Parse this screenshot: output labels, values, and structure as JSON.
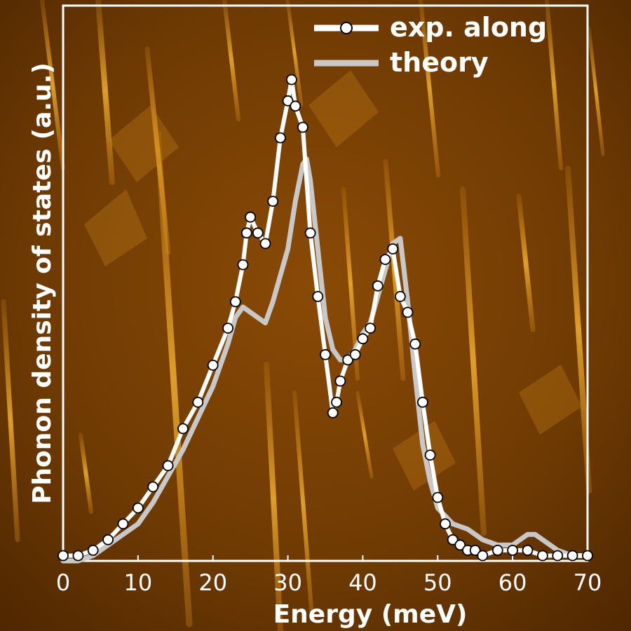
{
  "chart_data": {
    "type": "line",
    "title": "",
    "xlabel": "Energy (meV)",
    "ylabel": "Phonon density of states (a.u.)",
    "xlim": [
      0,
      70
    ],
    "ylim": [
      0,
      1.05
    ],
    "x_ticks": [
      "0",
      "10",
      "20",
      "30",
      "40",
      "50",
      "60",
      "70"
    ],
    "y_ticks": [],
    "grid": false,
    "legend_position": "top-right",
    "background": "STM image (orange/brown)",
    "colors": {
      "experiment": "#ffffff",
      "theory": "#c8c8c8",
      "frame": "#ffffff"
    },
    "series": [
      {
        "name": "exp. along",
        "style": "line-with-open-circle-markers",
        "x": [
          0,
          2,
          4,
          6,
          8,
          10,
          12,
          14,
          16,
          18,
          20,
          22,
          23,
          24,
          24.5,
          25,
          26,
          27,
          28,
          29,
          30,
          30.5,
          31,
          32,
          33,
          34,
          35,
          36,
          36.5,
          37,
          38,
          39,
          40,
          41,
          42,
          43,
          44,
          45,
          46,
          47,
          48,
          49,
          50,
          51,
          52,
          53,
          54,
          55,
          56,
          58,
          60,
          62,
          64,
          66,
          68,
          70
        ],
        "y": [
          0.01,
          0.01,
          0.02,
          0.04,
          0.07,
          0.1,
          0.14,
          0.18,
          0.25,
          0.3,
          0.37,
          0.44,
          0.49,
          0.56,
          0.62,
          0.65,
          0.62,
          0.6,
          0.68,
          0.8,
          0.87,
          0.91,
          0.86,
          0.82,
          0.62,
          0.5,
          0.39,
          0.28,
          0.3,
          0.34,
          0.38,
          0.39,
          0.42,
          0.44,
          0.52,
          0.57,
          0.59,
          0.5,
          0.47,
          0.41,
          0.3,
          0.2,
          0.12,
          0.07,
          0.04,
          0.03,
          0.02,
          0.02,
          0.01,
          0.02,
          0.02,
          0.02,
          0.01,
          0.01,
          0.01,
          0.01
        ]
      },
      {
        "name": "theory",
        "style": "line",
        "x": [
          0,
          2,
          4,
          6,
          8,
          10,
          12,
          14,
          16,
          18,
          20,
          22,
          23,
          24,
          26,
          27,
          28,
          29,
          30,
          31,
          32,
          32.5,
          33,
          34,
          35,
          36,
          37,
          38,
          39,
          40,
          41,
          42,
          43,
          44,
          45,
          46,
          47,
          48,
          49,
          50,
          52,
          54,
          56,
          58,
          60,
          61,
          62,
          63,
          64,
          66,
          68,
          70
        ],
        "y": [
          0.0,
          0.0,
          0.01,
          0.03,
          0.05,
          0.07,
          0.11,
          0.16,
          0.21,
          0.27,
          0.33,
          0.41,
          0.46,
          0.48,
          0.46,
          0.45,
          0.49,
          0.54,
          0.59,
          0.68,
          0.75,
          0.76,
          0.72,
          0.59,
          0.46,
          0.4,
          0.38,
          0.38,
          0.4,
          0.43,
          0.45,
          0.5,
          0.55,
          0.6,
          0.61,
          0.49,
          0.35,
          0.22,
          0.15,
          0.1,
          0.07,
          0.06,
          0.04,
          0.03,
          0.03,
          0.04,
          0.05,
          0.05,
          0.04,
          0.02,
          0.01,
          0.01
        ]
      }
    ]
  }
}
